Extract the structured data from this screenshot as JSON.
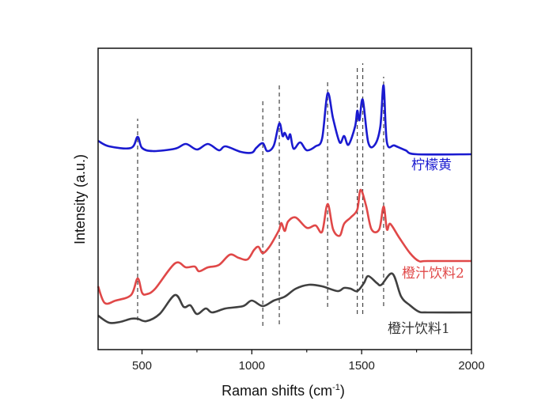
{
  "chart_data": {
    "type": "line",
    "title": "",
    "xlabel": "Raman shifts (cm",
    "xlabel_sup": "-1",
    "xlabel_close": ")",
    "ylabel": "Intensity (a.u.)",
    "xlim": [
      300,
      2000
    ],
    "ylim": [
      0,
      381
    ],
    "x_ticks": [
      500,
      1000,
      1500,
      2000
    ],
    "x_tick_labels": [
      "500",
      "1000",
      "1500",
      "2000"
    ],
    "x_minor_ticks": [
      750,
      1250,
      1750
    ],
    "y_ticks": [],
    "grid": false,
    "series": [
      {
        "name": "柠檬黄",
        "color": "#1a1ad0",
        "x": [
          300,
          350,
          450,
          480,
          500,
          550,
          650,
          700,
          750,
          800,
          850,
          880,
          950,
          1000,
          1020,
          1050,
          1070,
          1100,
          1125,
          1140,
          1150,
          1165,
          1175,
          1190,
          1220,
          1250,
          1290,
          1320,
          1345,
          1370,
          1400,
          1420,
          1440,
          1470,
          1480,
          1490,
          1505,
          1530,
          1560,
          1585,
          1600,
          1615,
          1650,
          1700,
          1750,
          2000
        ],
        "y": [
          264,
          257,
          255,
          269,
          255,
          251,
          254,
          260,
          253,
          260,
          252,
          257,
          250,
          249,
          255,
          261,
          251,
          258,
          286,
          270,
          274,
          266,
          272,
          254,
          262,
          252,
          257,
          267,
          324,
          292,
          262,
          270,
          259,
          282,
          302,
          290,
          316,
          262,
          259,
          282,
          334,
          262,
          258,
          252,
          247,
          247
        ]
      },
      {
        "name": "橙汁饮料2",
        "color": "#e04848",
        "x": [
          300,
          330,
          380,
          450,
          480,
          500,
          520,
          560,
          650,
          700,
          740,
          760,
          800,
          850,
          900,
          940,
          980,
          1010,
          1030,
          1050,
          1080,
          1110,
          1125,
          1135,
          1150,
          1165,
          1200,
          1250,
          1290,
          1320,
          1345,
          1370,
          1400,
          1420,
          1450,
          1480,
          1495,
          1520,
          1545,
          1580,
          1600,
          1615,
          1630,
          1670,
          1720,
          1760,
          1800,
          2000
        ],
        "y": [
          80,
          59,
          62,
          69,
          90,
          72,
          70,
          77,
          109,
          104,
          105,
          99,
          104,
          107,
          120,
          116,
          114,
          126,
          130,
          122,
          130,
          144,
          152,
          160,
          150,
          162,
          167,
          154,
          157,
          149,
          184,
          152,
          144,
          159,
          167,
          177,
          202,
          182,
          152,
          152,
          181,
          152,
          159,
          142,
          122,
          112,
          112,
          112
        ]
      },
      {
        "name": "橙汁饮料1",
        "color": "#404040",
        "x": [
          300,
          350,
          400,
          450,
          480,
          520,
          580,
          650,
          690,
          720,
          750,
          790,
          820,
          880,
          960,
          1000,
          1050,
          1100,
          1150,
          1200,
          1260,
          1320,
          1390,
          1420,
          1450,
          1480,
          1510,
          1530,
          1570,
          1590,
          1640,
          1680,
          1720,
          1760,
          1800,
          2000
        ],
        "y": [
          43,
          34,
          35,
          39,
          39,
          36,
          45,
          69,
          54,
          56,
          45,
          52,
          47,
          52,
          55,
          62,
          55,
          62,
          67,
          77,
          82,
          80,
          74,
          78,
          77,
          74,
          84,
          93,
          84,
          82,
          96,
          67,
          56,
          48,
          47,
          47
        ]
      }
    ],
    "reference_lines": [
      {
        "x": 480,
        "y": [
          37,
          292
        ]
      },
      {
        "x": 1050,
        "y": [
          30,
          317
        ]
      },
      {
        "x": 1125,
        "y": [
          32,
          334
        ]
      },
      {
        "x": 1345,
        "y": [
          54,
          342
        ]
      },
      {
        "x": 1480,
        "y": [
          45,
          360
        ]
      },
      {
        "x": 1505,
        "y": [
          45,
          362
        ]
      },
      {
        "x": 1600,
        "y": [
          55,
          345
        ]
      }
    ]
  }
}
